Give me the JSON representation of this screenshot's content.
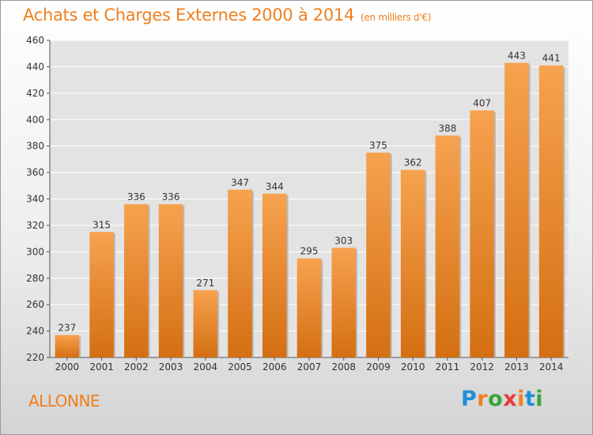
{
  "chart_data": {
    "type": "bar",
    "title": "Achats et Charges Externes 2000 à 2014",
    "unit_label": "(en milliers d'€)",
    "categories": [
      "2000",
      "2001",
      "2002",
      "2003",
      "2004",
      "2005",
      "2006",
      "2007",
      "2008",
      "2009",
      "2010",
      "2011",
      "2012",
      "2013",
      "2014"
    ],
    "values": [
      237,
      315,
      336,
      336,
      271,
      347,
      344,
      295,
      303,
      375,
      362,
      388,
      407,
      443,
      441
    ],
    "ylim": [
      220,
      460
    ],
    "yticks": [
      220,
      240,
      260,
      280,
      300,
      320,
      340,
      360,
      380,
      400,
      420,
      440,
      460
    ],
    "grid": true,
    "bar_color": "#f08b2a",
    "data_labels": true
  },
  "commune": "ALLONNE",
  "logo": {
    "text": "Proxiti",
    "letter_colors": [
      "#1f8fd8",
      "#f07f1e",
      "#3aa53a",
      "#e83a3a",
      "#f07f1e",
      "#1f8fd8",
      "#3aa53a"
    ]
  },
  "colors": {
    "accent": "#f07f1e",
    "axis_text": "#333333",
    "grid": "#ffffff"
  }
}
